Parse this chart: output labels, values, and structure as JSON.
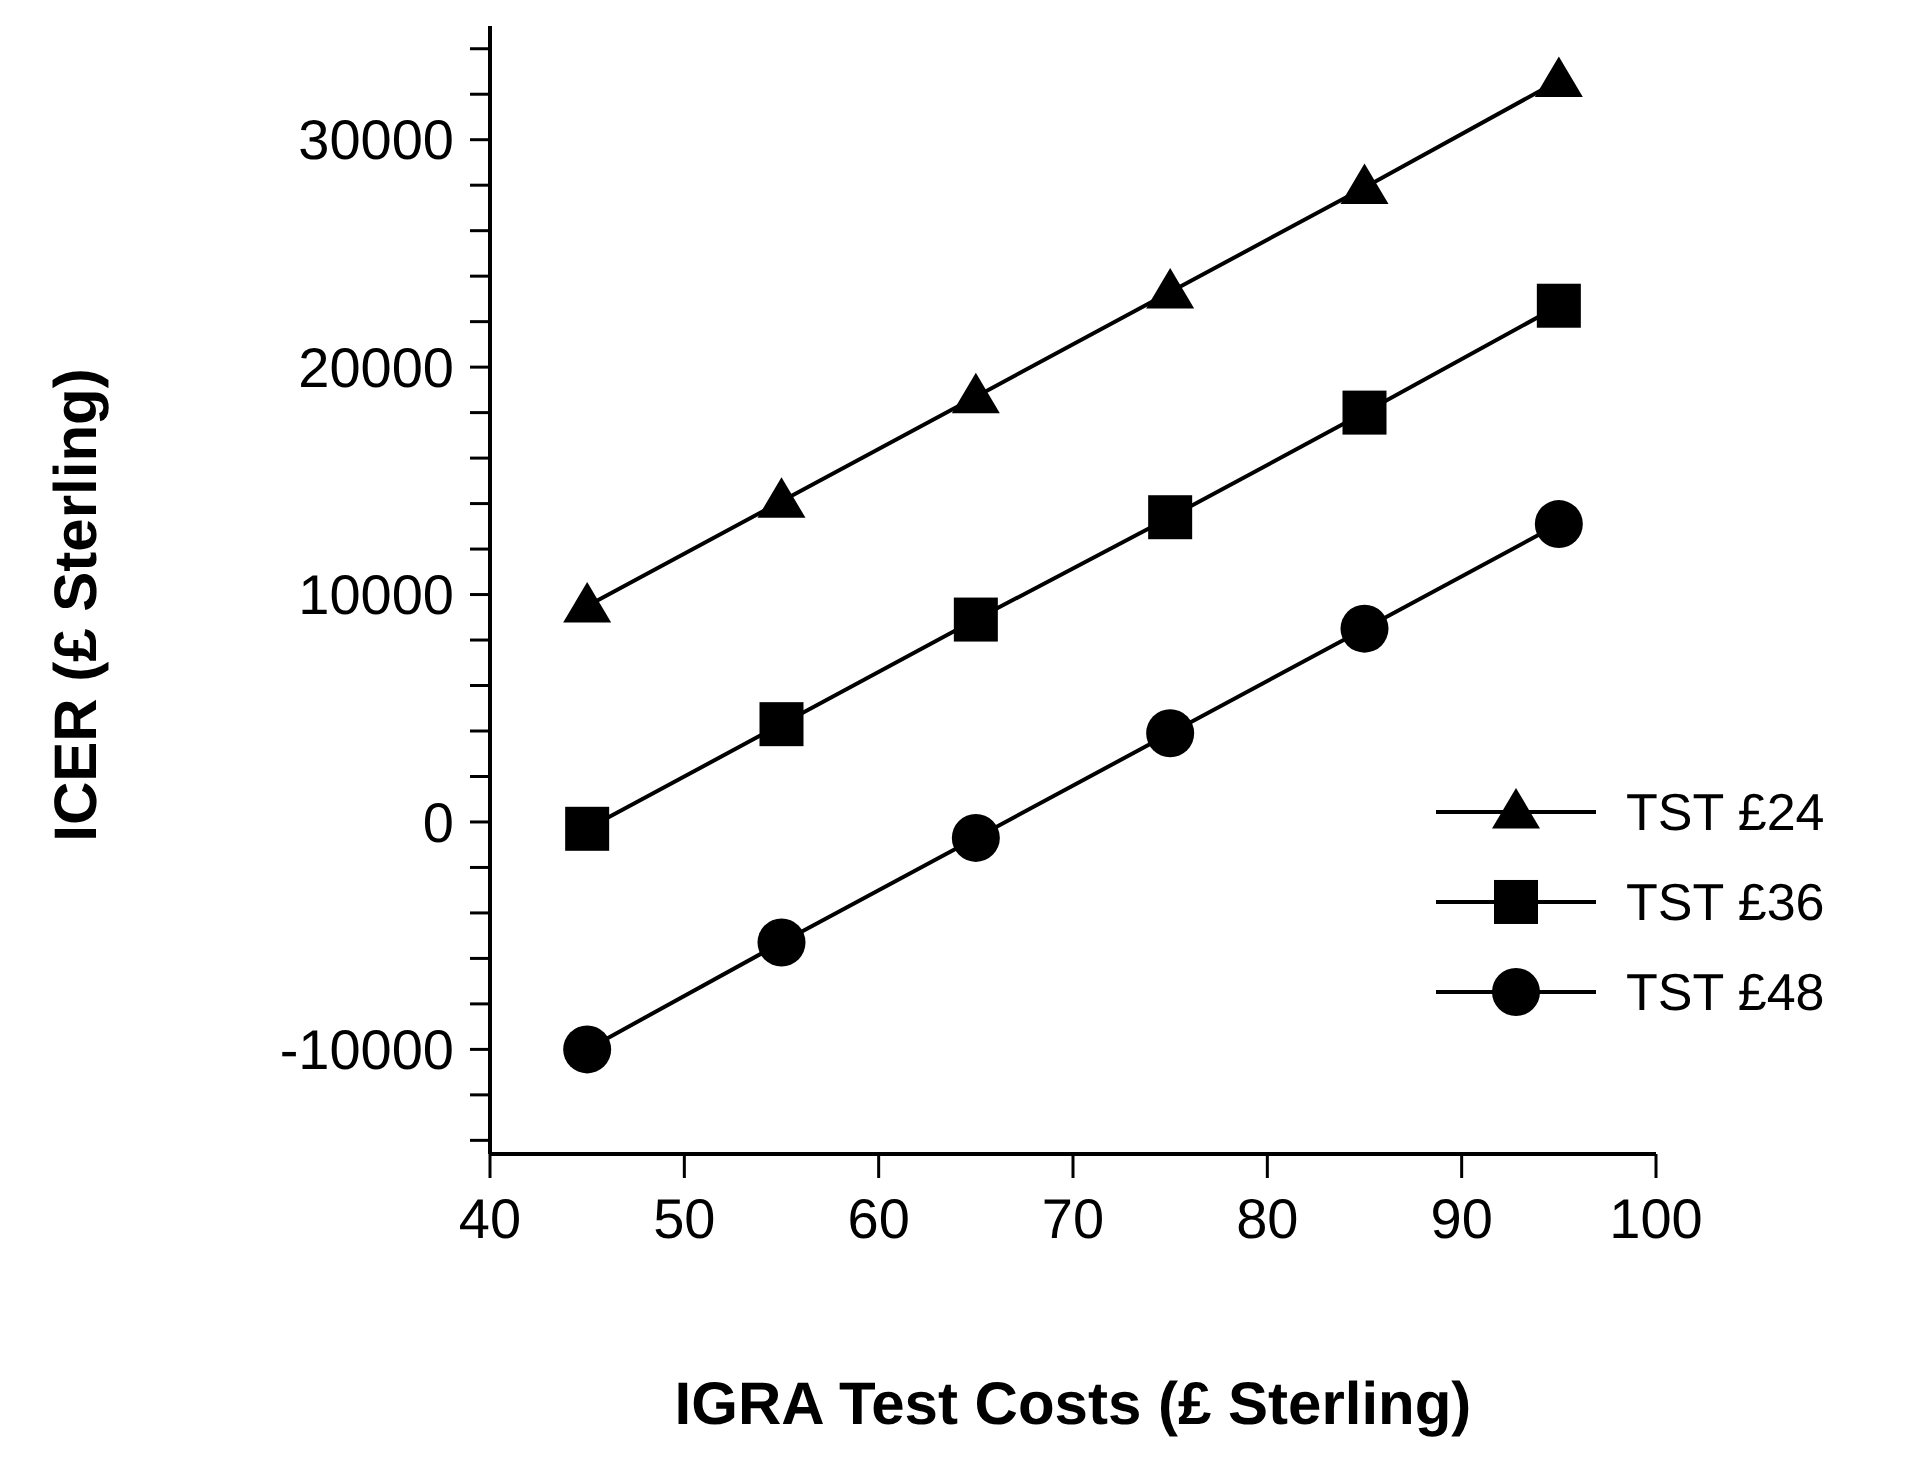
{
  "chart_data": {
    "type": "line",
    "xlabel": "IGRA Test Costs (£ Sterling)",
    "ylabel": "ICER (£ Sterling)",
    "x": [
      45,
      55,
      65,
      75,
      85,
      95
    ],
    "series": [
      {
        "name": "TST £24",
        "color": "#000000",
        "marker": "triangle",
        "values": [
          9500,
          14100,
          18700,
          23300,
          27900,
          32600
        ]
      },
      {
        "name": "TST £36",
        "color": "#000000",
        "marker": "square",
        "values": [
          -300,
          4300,
          8900,
          13400,
          18000,
          22700
        ]
      },
      {
        "name": "TST £48",
        "color": "#000000",
        "marker": "circle",
        "values": [
          -10000,
          -5300,
          -700,
          3900,
          8500,
          13100
        ]
      }
    ],
    "xlim": [
      40,
      100
    ],
    "xticks": [
      40,
      50,
      60,
      70,
      80,
      90,
      100
    ],
    "ylim": [
      -14600,
      35000
    ],
    "yticks": [
      {
        "value": -14000,
        "label": null
      },
      {
        "value": -12000,
        "label": null
      },
      -10000,
      {
        "value": -8000,
        "label": null
      },
      {
        "value": -6000,
        "label": null
      },
      {
        "value": -4000,
        "label": null
      },
      {
        "value": -2000,
        "label": null
      },
      0,
      {
        "value": 2000,
        "label": null
      },
      {
        "value": 4000,
        "label": null
      },
      {
        "value": 6000,
        "label": null
      },
      {
        "value": 8000,
        "label": null
      },
      10000,
      {
        "value": 12000,
        "label": null
      },
      {
        "value": 14000,
        "label": null
      },
      {
        "value": 16000,
        "label": null
      },
      {
        "value": 18000,
        "label": null
      },
      20000,
      {
        "value": 22000,
        "label": null
      },
      {
        "value": 24000,
        "label": null
      },
      {
        "value": 26000,
        "label": null
      },
      {
        "value": 28000,
        "label": null
      },
      30000,
      {
        "value": 32000,
        "label": null
      },
      {
        "value": 34000,
        "label": null
      }
    ],
    "legend": "right",
    "grid": false,
    "line_style": "solid"
  }
}
